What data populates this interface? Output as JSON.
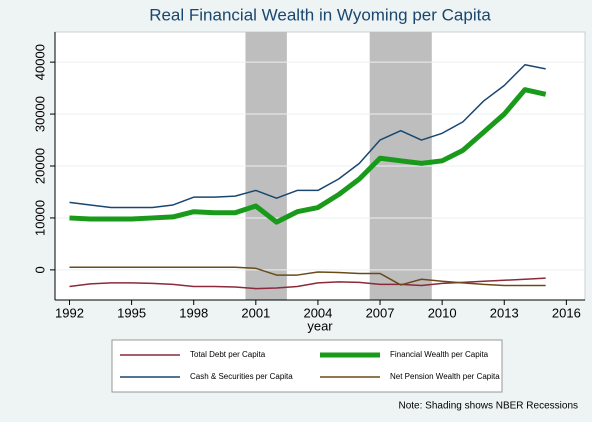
{
  "chart_data": {
    "type": "line",
    "title": "Real Financial Wealth in Wyoming per Capita",
    "x_label": "year",
    "note": "Note: Shading shows NBER Recessions",
    "x": [
      1992,
      1993,
      1994,
      1995,
      1996,
      1997,
      1998,
      1999,
      2000,
      2001,
      2002,
      2003,
      2004,
      2005,
      2006,
      2007,
      2008,
      2009,
      2010,
      2011,
      2012,
      2013,
      2014,
      2015
    ],
    "series": [
      {
        "name": "Total Debt per Capita",
        "color": "#8b2a3a",
        "width": 1.5,
        "values": [
          -3200,
          -2700,
          -2500,
          -2500,
          -2600,
          -2800,
          -3200,
          -3200,
          -3300,
          -3600,
          -3500,
          -3200,
          -2500,
          -2300,
          -2400,
          -2800,
          -2800,
          -3000,
          -2600,
          -2400,
          -2200,
          -2000,
          -1800,
          -1600
        ]
      },
      {
        "name": "Financial Wealth per Capita",
        "color": "#1a9a1a",
        "width": 5,
        "values": [
          10000,
          9800,
          9800,
          9800,
          10000,
          10200,
          11200,
          11000,
          11000,
          12300,
          9200,
          11200,
          12000,
          14500,
          17500,
          21500,
          21000,
          20500,
          21000,
          23000,
          26500,
          30000,
          34700,
          33800
        ]
      },
      {
        "name": "Cash & Securities per Capita",
        "color": "#1a476f",
        "width": 1.5,
        "values": [
          13000,
          12500,
          12000,
          12000,
          12000,
          12500,
          14000,
          14000,
          14200,
          15300,
          13800,
          15300,
          15300,
          17500,
          20500,
          25000,
          26800,
          25000,
          26300,
          28500,
          32500,
          35500,
          39500,
          38700
        ]
      },
      {
        "name": "Net Pension Wealth per Capita",
        "color": "#6b4a1a",
        "width": 1.5,
        "values": [
          500,
          500,
          500,
          500,
          500,
          500,
          500,
          500,
          500,
          300,
          -1000,
          -1000,
          -400,
          -500,
          -700,
          -700,
          -2900,
          -1800,
          -2200,
          -2500,
          -2800,
          -3000,
          -3000,
          -3000
        ]
      }
    ],
    "recessions": [
      [
        2000.5,
        2002.5
      ],
      [
        2006.5,
        2009.5
      ]
    ],
    "recession_color": "#bebebe",
    "xlim": [
      1991.3,
      2016.9
    ],
    "ylim": [
      -5800,
      45800
    ],
    "xticks": [
      1992,
      1995,
      1998,
      2001,
      2004,
      2007,
      2010,
      2013,
      2016
    ],
    "yticks": [
      0,
      10000,
      20000,
      30000,
      40000
    ],
    "grid": true
  }
}
